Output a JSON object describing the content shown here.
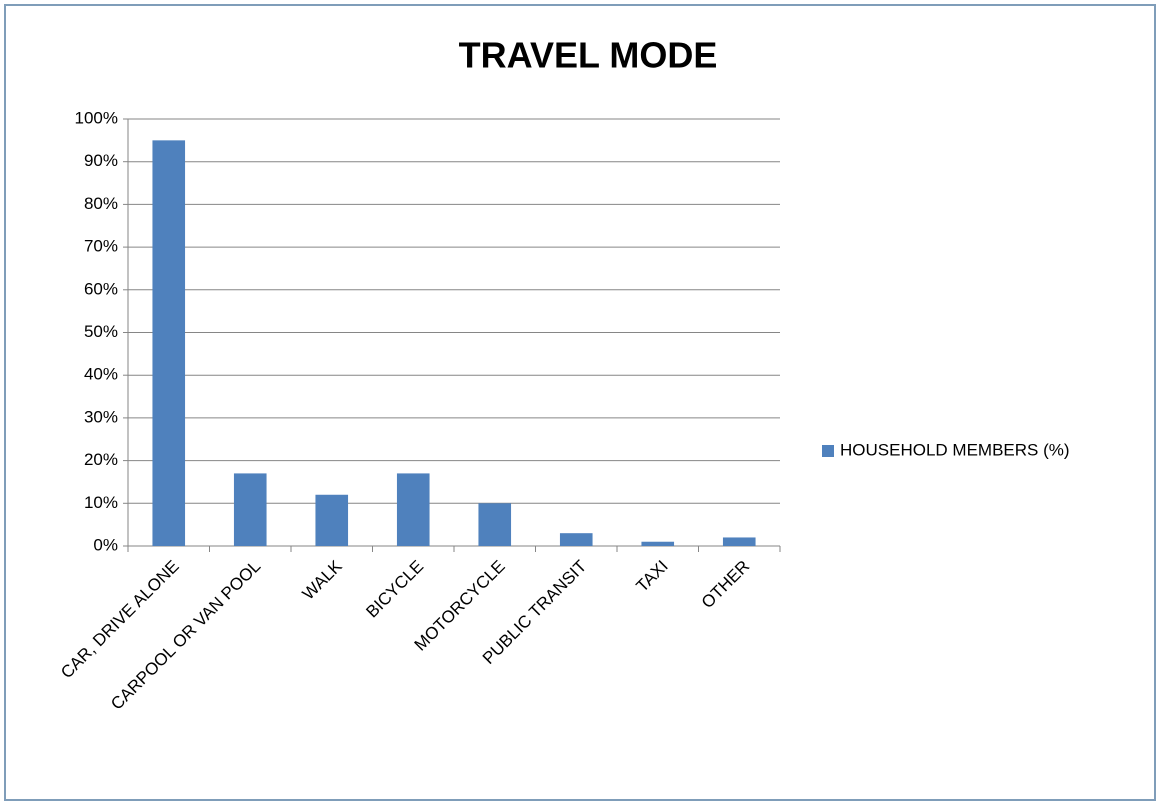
{
  "chart_data": {
    "type": "bar",
    "title": "TRAVEL MODE",
    "categories": [
      "CAR, DRIVE ALONE",
      "CARPOOL OR VAN POOL",
      "WALK",
      "BICYCLE",
      "MOTORCYCLE",
      "PUBLIC TRANSIT",
      "TAXI",
      "OTHER"
    ],
    "series": [
      {
        "name": "HOUSEHOLD MEMBERS (%)",
        "color": "#4f81bd",
        "values": [
          95,
          17,
          12,
          17,
          10,
          3,
          1,
          2
        ]
      }
    ],
    "ylim": [
      0,
      100
    ],
    "yticks": [
      {
        "value": 0,
        "label": "0%"
      },
      {
        "value": 10,
        "label": "10%"
      },
      {
        "value": 20,
        "label": "20%"
      },
      {
        "value": 30,
        "label": "30%"
      },
      {
        "value": 40,
        "label": "40%"
      },
      {
        "value": 50,
        "label": "50%"
      },
      {
        "value": 60,
        "label": "60%"
      },
      {
        "value": 70,
        "label": "70%"
      },
      {
        "value": 80,
        "label": "80%"
      },
      {
        "value": 90,
        "label": "90%"
      },
      {
        "value": 100,
        "label": "100%"
      }
    ],
    "grid": true,
    "legend": "right"
  }
}
